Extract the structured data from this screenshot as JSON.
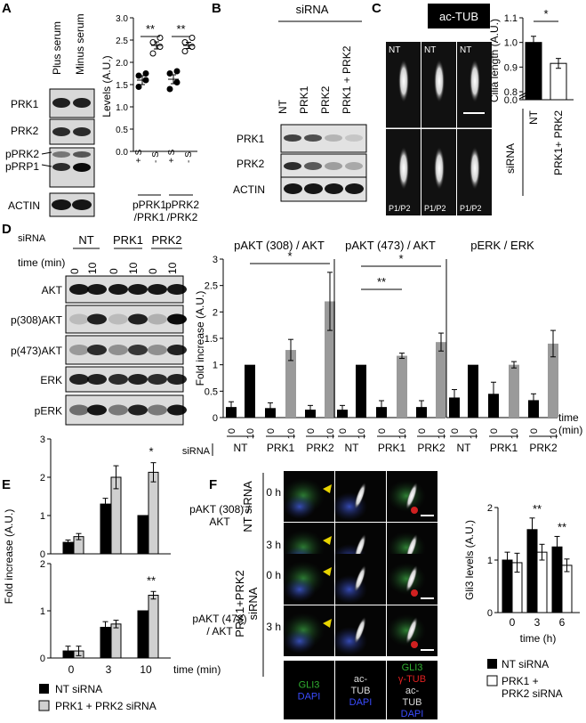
{
  "panels": {
    "A": {
      "letter": "A",
      "lane_labels": [
        "Plus serum",
        "Minus serum"
      ],
      "blot_labels": [
        "PRK1",
        "PRK2",
        "pPRK2",
        "pPRP1",
        "ACTIN"
      ],
      "ylabel": "Levels (A.U.)",
      "yticks": [
        "0.0",
        "0.5",
        "1.0",
        "1.5",
        "2.0",
        "2.5",
        "3.0"
      ],
      "xticks": [
        "+ S",
        "- S",
        "+ S",
        "- S"
      ],
      "group_labels": [
        "pPRK1\n/PRK1",
        "pPRK2\n/PRK2"
      ],
      "sig": [
        "**",
        "**"
      ]
    },
    "B": {
      "letter": "B",
      "header": "siRNA",
      "lane_labels": [
        "NT",
        "PRK1",
        "PRK2",
        "PRK1 + PRK2"
      ],
      "blot_labels": [
        "PRK1",
        "PRK2",
        "ACTIN"
      ]
    },
    "C": {
      "letter": "C",
      "header": "ac-TUB",
      "tile_labels_top": [
        "NT",
        "NT",
        "NT"
      ],
      "tile_labels_bottom": [
        "P1/P2",
        "P1/P2",
        "P1/P2"
      ],
      "ylabel": "Cilia length (A.U.)",
      "yticks": [
        "0.0",
        "0.8",
        "0.9",
        "1.0",
        "1.1"
      ],
      "xticks": [
        "NT",
        "PRK1+ PRK2"
      ],
      "side_label": "siRNA",
      "sig": "*"
    },
    "D": {
      "letter": "D",
      "sirna_label": "siRNA",
      "groups": [
        "NT",
        "PRK1",
        "PRK2"
      ],
      "time_label": "time (min)",
      "times": [
        "0",
        "10",
        "0",
        "10",
        "0",
        "10"
      ],
      "blot_labels": [
        "AKT",
        "p(308)AKT",
        "p(473)AKT",
        "ERK",
        "pERK"
      ],
      "chart_titles": [
        "pAKT (308) / AKT",
        "pAKT (473) / AKT",
        "pERK / ERK"
      ],
      "ylabel": "Fold increase (A.U.)",
      "yticks": [
        "0",
        "0.5",
        "1",
        "1.5",
        "2",
        "2.5",
        "3"
      ],
      "bar_time_labels": [
        "0",
        "10",
        "0",
        "10",
        "0",
        "10"
      ],
      "axis_time_label": "time\n(min)",
      "sig308": "*",
      "sig473": [
        "**",
        "*"
      ]
    },
    "E": {
      "letter": "E",
      "ylabel": "Fold increase (A.U.)",
      "top_yticks": [
        "0",
        "1",
        "2",
        "3"
      ],
      "bottom_yticks": [
        "0",
        "1",
        "2"
      ],
      "top_title": "pAKT (308) /\nAKT",
      "bottom_title": "pAKT (473)\n/ AKT",
      "xticks": [
        "0",
        "3",
        "10"
      ],
      "xlabel": "time (min)",
      "legend": [
        "NT siRNA",
        "PRK1 + PRK2 siRNA"
      ],
      "sig_top": "*",
      "sig_bottom": "**"
    },
    "F": {
      "letter": "F",
      "row_groups": [
        "NT siRNA",
        "PRK1+PRK2\nsiRNA"
      ],
      "times": [
        "0 h",
        "3 h",
        "0 h",
        "3 h"
      ],
      "ch_labels": [
        {
          "lines": [
            "GLI3",
            "DAPI"
          ]
        },
        {
          "lines": [
            "ac-",
            "TUB",
            "DAPI"
          ]
        },
        {
          "lines": [
            "GLI3",
            "γ-TUB",
            "ac-",
            "TUB",
            "DAPI"
          ]
        }
      ],
      "ylabel": "Gli3 levels  (A.U.)",
      "yticks": [
        "0",
        "1",
        "2"
      ],
      "xticks": [
        "0",
        "3",
        "6"
      ],
      "xlabel": "time (h)",
      "sig": [
        "**",
        "**"
      ],
      "legend": [
        "NT siRNA",
        "PRK1 +\nPRK2 siRNA"
      ]
    }
  },
  "chart_data": [
    {
      "type": "scatter",
      "panel": "A",
      "categories": [
        "+ S",
        "- S",
        "+ S",
        "- S"
      ],
      "ylabel": "Levels (A.U.)",
      "ylim": [
        0,
        3
      ],
      "series": [
        {
          "points": [
            1.45,
            1.6,
            1.7,
            1.75
          ],
          "mean": 1.6,
          "sem": 0.1
        },
        {
          "points": [
            2.2,
            2.35,
            2.45,
            2.55
          ],
          "mean": 2.38,
          "sem": 0.08
        },
        {
          "points": [
            1.4,
            1.55,
            1.75,
            1.8
          ],
          "mean": 1.62,
          "sem": 0.1
        },
        {
          "points": [
            2.25,
            2.35,
            2.45,
            2.55
          ],
          "mean": 2.38,
          "sem": 0.07
        }
      ]
    },
    {
      "type": "bar",
      "panel": "C",
      "categories": [
        "NT",
        "PRK1+ PRK2"
      ],
      "values": [
        1.0,
        0.915
      ],
      "errors": [
        0.025,
        0.02
      ],
      "ylabel": "Cilia length (A.U.)",
      "ylim": [
        0.8,
        1.1
      ]
    },
    {
      "type": "bar",
      "panel": "D",
      "title": "pAKT (308) / AKT",
      "categories": [
        "NT 0",
        "NT 10",
        "PRK1 0",
        "PRK1 10",
        "PRK2 0",
        "PRK2 10"
      ],
      "values": [
        0.2,
        1.0,
        0.18,
        1.28,
        0.15,
        2.2
      ],
      "errors": [
        0.1,
        0,
        0.1,
        0.2,
        0.08,
        0.55
      ],
      "ylim": [
        0,
        3
      ]
    },
    {
      "type": "bar",
      "panel": "D",
      "title": "pAKT (473) / AKT",
      "categories": [
        "NT 0",
        "NT 10",
        "PRK1 0",
        "PRK1 10",
        "PRK2 0",
        "PRK2 10"
      ],
      "values": [
        0.15,
        1.0,
        0.2,
        1.17,
        0.2,
        1.43
      ],
      "errors": [
        0.08,
        0,
        0.12,
        0.05,
        0.12,
        0.17
      ],
      "ylim": [
        0,
        3
      ]
    },
    {
      "type": "bar",
      "panel": "D",
      "title": "pERK / ERK",
      "categories": [
        "NT 0",
        "NT 10",
        "PRK1 0",
        "PRK1 10",
        "PRK2 0",
        "PRK2 10"
      ],
      "values": [
        0.38,
        1.0,
        0.45,
        1.0,
        0.33,
        1.4
      ],
      "errors": [
        0.15,
        0,
        0.22,
        0.06,
        0.12,
        0.25
      ],
      "ylim": [
        0,
        3
      ]
    },
    {
      "type": "bar",
      "panel": "E",
      "title": "pAKT (308) / AKT",
      "categories": [
        "0",
        "3",
        "10"
      ],
      "series": [
        {
          "name": "NT siRNA",
          "values": [
            0.3,
            1.3,
            1.0
          ],
          "errors": [
            0.06,
            0.15,
            0
          ]
        },
        {
          "name": "PRK1 + PRK2 siRNA",
          "values": [
            0.45,
            2.0,
            2.13
          ],
          "errors": [
            0.08,
            0.3,
            0.25
          ]
        }
      ],
      "ylim": [
        0,
        3
      ]
    },
    {
      "type": "bar",
      "panel": "E",
      "title": "pAKT (473) / AKT",
      "categories": [
        "0",
        "3",
        "10"
      ],
      "series": [
        {
          "name": "NT siRNA",
          "values": [
            0.15,
            0.65,
            1.0
          ],
          "errors": [
            0.1,
            0.12,
            0
          ]
        },
        {
          "name": "PRK1 + PRK2 siRNA",
          "values": [
            0.15,
            0.72,
            1.33
          ],
          "errors": [
            0.1,
            0.08,
            0.08
          ]
        }
      ],
      "ylim": [
        0,
        2
      ]
    },
    {
      "type": "bar",
      "panel": "F",
      "categories": [
        "0",
        "3",
        "6"
      ],
      "series": [
        {
          "name": "NT siRNA",
          "values": [
            1.0,
            1.58,
            1.25
          ],
          "errors": [
            0.15,
            0.22,
            0.2
          ]
        },
        {
          "name": "PRK1 + PRK2 siRNA",
          "values": [
            0.95,
            1.15,
            0.9
          ],
          "errors": [
            0.18,
            0.15,
            0.12
          ]
        }
      ],
      "xlabel": "time (h)",
      "ylabel": "Gli3 levels  (A.U.)",
      "ylim": [
        0,
        2
      ]
    }
  ]
}
